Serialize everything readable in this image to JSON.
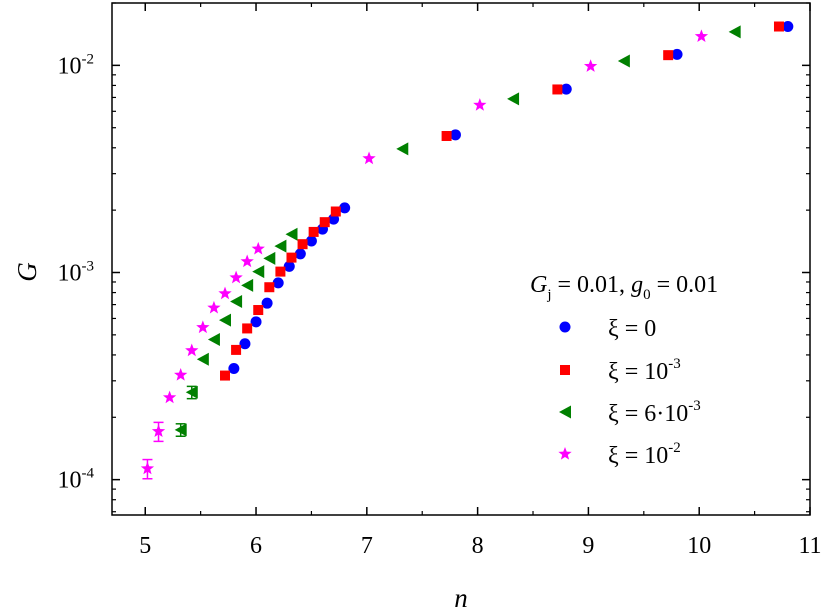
{
  "chart_data": {
    "type": "scatter",
    "xlabel": "n",
    "ylabel": "G",
    "xlim": [
      4.7,
      11.0
    ],
    "ylim": [
      6.75e-05,
      0.02
    ],
    "yscale": "log",
    "x_ticks": [
      5,
      6,
      7,
      8,
      9,
      10,
      11
    ],
    "x_tick_labels": [
      "5",
      "6",
      "7",
      "8",
      "9",
      "10",
      "11"
    ],
    "y_ticks": [
      0.0001,
      0.001,
      0.01
    ],
    "y_tick_labels": [
      {
        "base": "10",
        "exp": "-4"
      },
      {
        "base": "10",
        "exp": "-3"
      },
      {
        "base": "10",
        "exp": "-2"
      }
    ],
    "grid": false,
    "legend_placement": "center-right",
    "legend_title": {
      "g": "G",
      "gsub": "j",
      "mid": " = 0.01, ",
      "g0": "g",
      "g0sub": "0",
      "end": " = 0.01"
    },
    "series": [
      {
        "name": "ξ = 0",
        "label": {
          "base": "ξ = ",
          "mant": "0",
          "exp": ""
        },
        "marker": "circle",
        "color": "#0000ff",
        "x": [
          5.8,
          5.9,
          6.0,
          6.1,
          6.2,
          6.3,
          6.4,
          6.5,
          6.6,
          6.7,
          6.8,
          7.8,
          8.8,
          9.8,
          10.8
        ],
        "y": [
          0.000344,
          0.000453,
          0.000578,
          0.000711,
          0.000891,
          0.00107,
          0.00123,
          0.00142,
          0.00162,
          0.00181,
          0.00205,
          0.00462,
          0.00768,
          0.0113,
          0.0154
        ]
      },
      {
        "name": "ξ = 10-3",
        "label": {
          "base": "ξ = ",
          "mant": "10",
          "exp": "-3"
        },
        "marker": "square",
        "color": "#ff0000",
        "x": [
          5.72,
          5.82,
          5.92,
          6.02,
          6.12,
          6.22,
          6.32,
          6.42,
          6.52,
          6.62,
          6.72,
          7.72,
          8.72,
          9.72,
          10.72
        ],
        "y": [
          0.000318,
          0.000423,
          0.000537,
          0.000659,
          0.000849,
          0.00101,
          0.00118,
          0.00137,
          0.00157,
          0.00175,
          0.00197,
          0.00456,
          0.00765,
          0.0112,
          0.0154
        ]
      },
      {
        "name": "ξ = 6·10-3",
        "label": {
          "base": "ξ = ",
          "mant": "6·10",
          "exp": "-3"
        },
        "marker": "triangle-left",
        "color": "#008000",
        "x": [
          5.32,
          5.42,
          5.52,
          5.62,
          5.72,
          5.82,
          5.92,
          6.02,
          6.12,
          6.22,
          6.32,
          7.32,
          8.32,
          9.32,
          10.32
        ],
        "y": [
          0.000174,
          0.000264,
          0.000381,
          0.000475,
          0.000589,
          0.000724,
          0.000867,
          0.00101,
          0.00117,
          0.00134,
          0.00153,
          0.00395,
          0.00689,
          0.0105,
          0.0145
        ],
        "error": [
          1.2e-05,
          1.8e-05,
          0,
          0,
          0,
          0,
          0,
          0,
          0,
          0,
          0,
          0,
          0,
          0,
          0
        ]
      },
      {
        "name": "ξ = 10-2",
        "label": {
          "base": "ξ = ",
          "mant": "10",
          "exp": "-2"
        },
        "marker": "star",
        "color": "#ff00ff",
        "x": [
          5.02,
          5.12,
          5.22,
          5.32,
          5.42,
          5.52,
          5.62,
          5.72,
          5.82,
          5.92,
          6.02,
          7.02,
          8.02,
          9.02,
          10.02
        ],
        "y": [
          0.000113,
          0.000171,
          0.000249,
          0.00032,
          0.00042,
          0.000543,
          0.000675,
          0.000791,
          0.000944,
          0.00113,
          0.0013,
          0.00355,
          0.00643,
          0.0099,
          0.0138
        ],
        "error": [
          1.2e-05,
          1.8e-05,
          0,
          0,
          0,
          0,
          0,
          0,
          0,
          0,
          0,
          0,
          0,
          0,
          0
        ]
      }
    ]
  }
}
